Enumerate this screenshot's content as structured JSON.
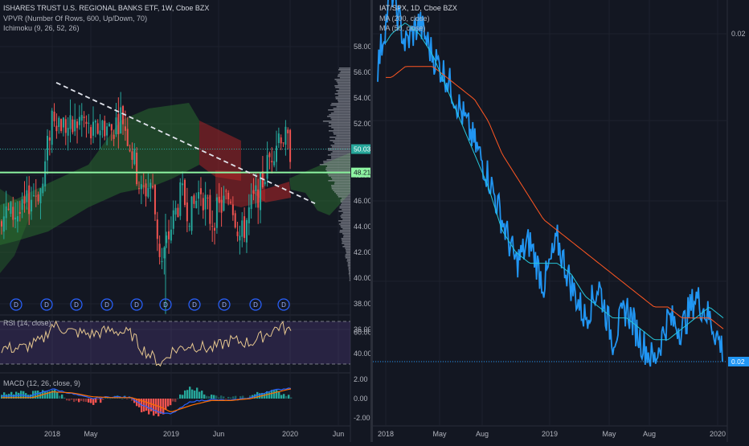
{
  "left_chart": {
    "title": "ISHARES TRUST U.S. REGIONAL BANKS ETF, 1W, Cboe BZX",
    "indicators": [
      "VPVR (Number Of Rows, 600, Up/Down, 70)",
      "Ichimoku (9, 26, 52, 26)"
    ],
    "price_axis": [
      "58.00",
      "56.00",
      "54.00",
      "52.00",
      "50.00",
      "48.00",
      "46.00",
      "44.00",
      "42.00",
      "40.00",
      "38.00",
      "36.00"
    ],
    "last_price": "50.03",
    "hline_price": "48.21",
    "dividend_marker": "D",
    "dividend_count": 10,
    "rsi_label": "RSI (14, close)",
    "rsi_axis": [
      "60.00",
      "40.00"
    ],
    "macd_label": "MACD (12, 26, close, 9)",
    "macd_axis": [
      "2.00",
      "0.00",
      "-2.00"
    ],
    "time_axis": [
      "2018",
      "May",
      "2019",
      "Jun",
      "2020",
      "Jun"
    ]
  },
  "right_chart": {
    "title": "IAT/SPX, 1D, Cboe BZX",
    "indicators": [
      "MA (200, close)",
      "MA (50, close)"
    ],
    "price_axis_top": "0.02",
    "last_value": "0.02",
    "time_axis": [
      "2018",
      "May",
      "Aug",
      "2019",
      "May",
      "Aug",
      "2020"
    ]
  },
  "chart_data": [
    {
      "type": "candlestick",
      "title": "ISHARES TRUST U.S. REGIONAL BANKS ETF, 1W, Cboe BZX",
      "ylim": [
        35,
        59
      ],
      "x": [
        "2017-10",
        "2017-11",
        "2017-12",
        "2018-01",
        "2018-02",
        "2018-03",
        "2018-04",
        "2018-05",
        "2018-06",
        "2018-07",
        "2018-08",
        "2018-09",
        "2018-10",
        "2018-11",
        "2018-12",
        "2019-01",
        "2019-02",
        "2019-03",
        "2019-04",
        "2019-05",
        "2019-06",
        "2019-07",
        "2019-08",
        "2019-09",
        "2019-10",
        "2019-11",
        "2019-12",
        "2020-01"
      ],
      "close": [
        45.0,
        46.5,
        47.0,
        53.0,
        52.0,
        51.5,
        52.5,
        51.0,
        52.0,
        51.5,
        52.8,
        50.0,
        46.5,
        47.5,
        41.0,
        44.0,
        46.5,
        45.0,
        47.0,
        44.5,
        45.5,
        46.5,
        43.0,
        45.5,
        47.0,
        49.5,
        51.5,
        50.03
      ],
      "reference_lines": [
        {
          "value": 48.21
        },
        {
          "value": 50.03
        }
      ],
      "trendline": [
        [
          "2018-01",
          55.5
        ],
        [
          "2019-12",
          46.0
        ]
      ]
    },
    {
      "type": "line",
      "title": "RSI (14, close)",
      "ylim": [
        20,
        80
      ],
      "x": [
        "2017-10",
        "2017-12",
        "2018-01",
        "2018-03",
        "2018-05",
        "2018-07",
        "2018-09",
        "2018-10",
        "2018-12",
        "2019-01",
        "2019-03",
        "2019-05",
        "2019-07",
        "2019-09",
        "2019-11",
        "2019-12",
        "2020-01"
      ],
      "values": [
        45,
        52,
        67,
        60,
        58,
        62,
        58,
        45,
        30,
        42,
        48,
        44,
        52,
        50,
        60,
        66,
        60
      ],
      "reference_lines": [
        {
          "value": 70
        },
        {
          "value": 30
        }
      ]
    },
    {
      "type": "bar",
      "title": "MACD (12, 26, close, 9)",
      "ylim": [
        -2.5,
        3.5
      ],
      "x": [
        "2017-11",
        "2018-01",
        "2018-03",
        "2018-05",
        "2018-07",
        "2018-09",
        "2018-10",
        "2018-12",
        "2019-01",
        "2019-03",
        "2019-05",
        "2019-07",
        "2019-09",
        "2019-11",
        "2020-01"
      ],
      "series": [
        {
          "values": [
            0.3,
            1.0,
            0.5,
            0.0,
            0.2,
            0.1,
            -0.6,
            -1.5,
            -1.6,
            -0.3,
            -0.1,
            -0.2,
            0.1,
            0.8,
            1.1
          ]
        },
        {
          "values": [
            0.1,
            0.7,
            0.6,
            0.2,
            0.1,
            0.1,
            -0.2,
            -0.9,
            -1.4,
            -0.7,
            -0.2,
            -0.2,
            0.0,
            0.5,
            1.0
          ]
        }
      ]
    },
    {
      "type": "line",
      "title": "IAT/SPX, 1D, Cboe BZX",
      "x": [
        "2017-12",
        "2018-01",
        "2018-02",
        "2018-03",
        "2018-04",
        "2018-05",
        "2018-06",
        "2018-07",
        "2018-08",
        "2018-09",
        "2018-10",
        "2018-11",
        "2018-12",
        "2019-01",
        "2019-02",
        "2019-03",
        "2019-04",
        "2019-05",
        "2019-06",
        "2019-07",
        "2019-08",
        "2019-09",
        "2019-10",
        "2019-11",
        "2019-12",
        "2020-01"
      ],
      "series": [
        {
          "name": "IAT/SPX",
          "values": [
            0.0197,
            0.0204,
            0.0199,
            0.0201,
            0.0198,
            0.0196,
            0.0193,
            0.019,
            0.0187,
            0.0183,
            0.0179,
            0.0181,
            0.0177,
            0.0181,
            0.0177,
            0.0174,
            0.0177,
            0.0172,
            0.0175,
            0.0172,
            0.017,
            0.0174,
            0.0173,
            0.0176,
            0.0174,
            0.0171
          ]
        },
        {
          "name": "MA (200, close)",
          "values": [
            0.0196,
            0.0196,
            0.0197,
            0.0197,
            0.0197,
            0.0196,
            0.0195,
            0.0194,
            0.0192,
            0.0189,
            0.0187,
            0.0185,
            0.0183,
            0.0182,
            0.0181,
            0.018,
            0.0179,
            0.0178,
            0.0177,
            0.0176,
            0.0175,
            0.0175,
            0.0174,
            0.0174,
            0.0174,
            0.0173
          ]
        },
        {
          "name": "MA (50, close)",
          "values": [
            0.0198,
            0.02,
            0.0201,
            0.02,
            0.0198,
            0.0195,
            0.0192,
            0.0189,
            0.0186,
            0.0182,
            0.018,
            0.0179,
            0.0179,
            0.0179,
            0.0178,
            0.0176,
            0.0175,
            0.0174,
            0.0174,
            0.0173,
            0.0172,
            0.0172,
            0.0173,
            0.0174,
            0.0175,
            0.0174
          ]
        }
      ]
    }
  ]
}
